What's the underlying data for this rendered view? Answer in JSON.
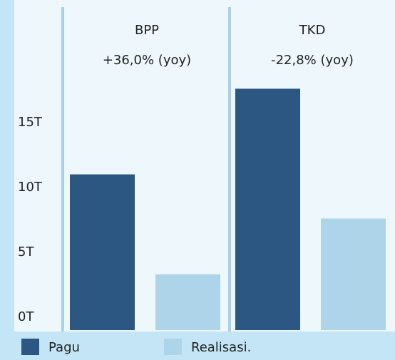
{
  "chart_data": {
    "type": "bar",
    "categories": [
      "BPP",
      "TKD"
    ],
    "annotations": [
      "+36,0% (yoy)",
      "-22,8% (yoy)"
    ],
    "series": [
      {
        "name": "Pagu",
        "color": "#2b5782",
        "values": [
          12.0,
          18.6
        ]
      },
      {
        "name": "Realisasi.",
        "color": "#aed4ea",
        "values": [
          4.3,
          8.6
        ]
      }
    ],
    "ylim": [
      0,
      25
    ],
    "yticks": [
      {
        "value": 0,
        "label": "0T"
      },
      {
        "value": 5,
        "label": "5T"
      },
      {
        "value": 10,
        "label": "10T"
      },
      {
        "value": 15,
        "label": "15T"
      }
    ]
  }
}
